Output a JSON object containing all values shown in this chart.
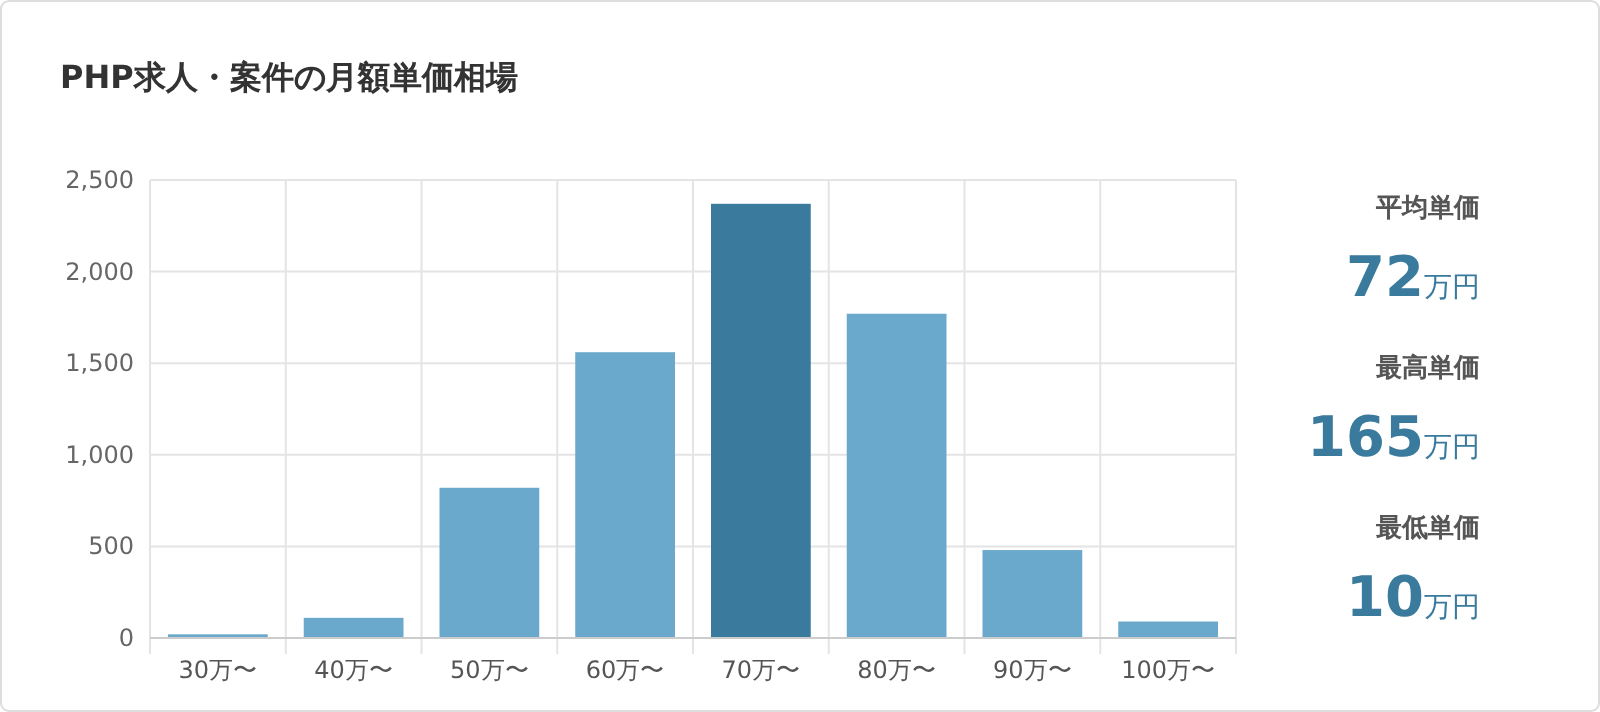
{
  "chart_data": {
    "type": "bar",
    "title": "PHP求人・案件の月額単価相場",
    "categories": [
      "30万〜",
      "40万〜",
      "50万〜",
      "60万〜",
      "70万〜",
      "80万〜",
      "90万〜",
      "100万〜"
    ],
    "values": [
      20,
      110,
      820,
      1560,
      2370,
      1770,
      480,
      90
    ],
    "colors": [
      "#6aa8cc",
      "#6aa8cc",
      "#6aa8cc",
      "#6aa8cc",
      "#3a7a9c",
      "#6aa8cc",
      "#6aa8cc",
      "#6aa8cc"
    ],
    "ylim": [
      0,
      2500
    ],
    "yticks": [
      {
        "value": 0,
        "label": "0"
      },
      {
        "value": 500,
        "label": "500"
      },
      {
        "value": 1000,
        "label": "1,000"
      },
      {
        "value": 1500,
        "label": "1,500"
      },
      {
        "value": 2000,
        "label": "2,000"
      },
      {
        "value": 2500,
        "label": "2,500"
      }
    ],
    "grid": true,
    "annotations": [
      "平均単価",
      "72万円",
      "最高単価",
      "165万円",
      "最低単価",
      "10万円"
    ]
  }
}
